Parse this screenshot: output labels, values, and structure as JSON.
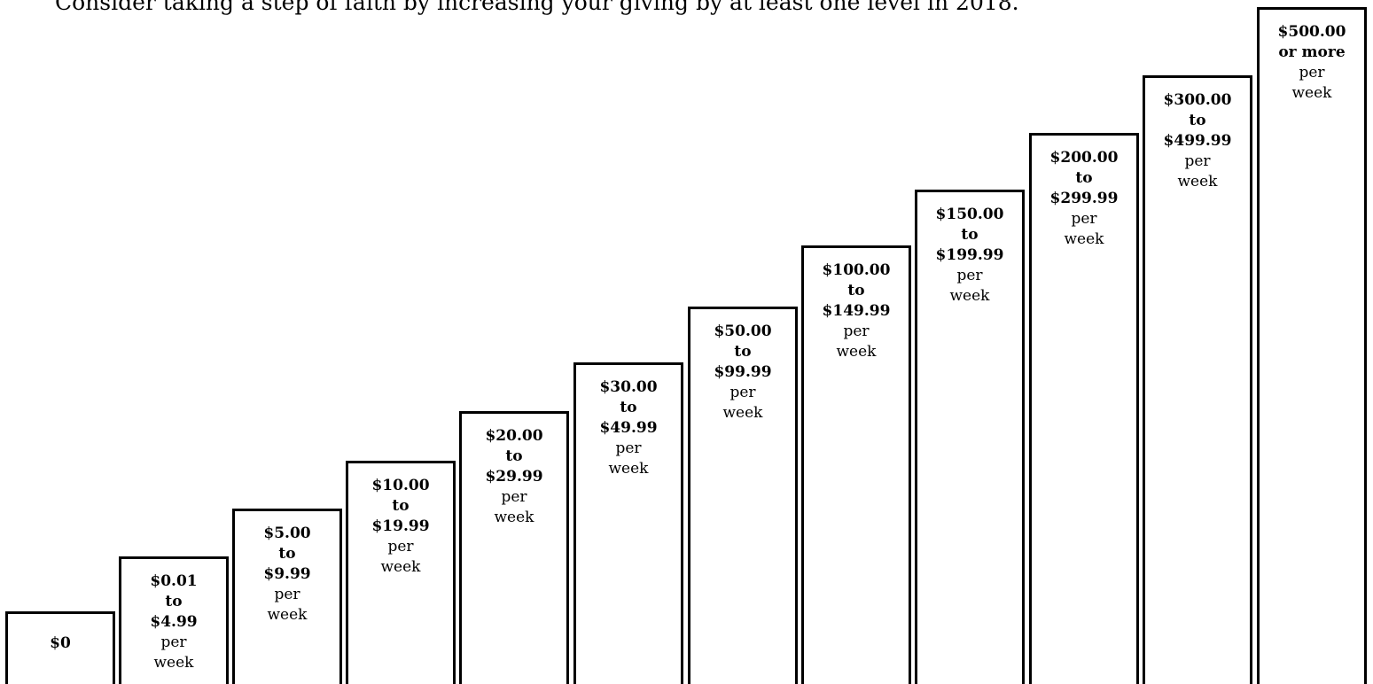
{
  "intro_text": "Consider taking a step of faith by increasing your giving by at least one level in 2018.",
  "steps": [
    {
      "lines": [
        "$0"
      ],
      "unit": []
    },
    {
      "lines": [
        "$0.01",
        "to",
        "$4.99"
      ],
      "unit": [
        "per",
        "week"
      ]
    },
    {
      "lines": [
        "$5.00",
        "to",
        "$9.99"
      ],
      "unit": [
        "per",
        "week"
      ]
    },
    {
      "lines": [
        "$10.00",
        "to",
        "$19.99"
      ],
      "unit": [
        "per",
        "week"
      ]
    },
    {
      "lines": [
        "$20.00",
        "to",
        "$29.99"
      ],
      "unit": [
        "per",
        "week"
      ]
    },
    {
      "lines": [
        "$30.00",
        "to",
        "$49.99"
      ],
      "unit": [
        "per",
        "week"
      ]
    },
    {
      "lines": [
        "$50.00",
        "to",
        "$99.99"
      ],
      "unit": [
        "per",
        "week"
      ]
    },
    {
      "lines": [
        "$100.00",
        "to",
        "$149.99"
      ],
      "unit": [
        "per",
        "week"
      ]
    },
    {
      "lines": [
        "$150.00",
        "to",
        "$199.99"
      ],
      "unit": [
        "per",
        "week"
      ]
    },
    {
      "lines": [
        "$200.00",
        "to",
        "$299.99"
      ],
      "unit": [
        "per",
        "week"
      ]
    },
    {
      "lines": [
        "$300.00",
        "to",
        "$499.99"
      ],
      "unit": [
        "per",
        "week"
      ]
    },
    {
      "lines": [
        "$500.00",
        "or more"
      ],
      "unit": [
        "per",
        "week"
      ]
    }
  ]
}
